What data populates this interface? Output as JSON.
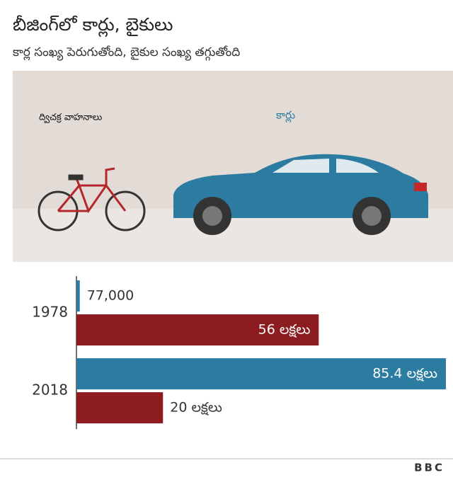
{
  "chart_data": {
    "type": "bar",
    "title": "బీజింగ్‌లో కార్లు, బైకులు",
    "subtitle": "కార్ల సంఖ్య పెరుగుతోంది, బైకుల సంఖ్య తగ్గుతోంది",
    "categories": [
      "1978",
      "2018"
    ],
    "series": [
      {
        "name": "కార్లు",
        "color": "#2b7ca0",
        "values": [
          77000,
          8540000
        ],
        "value_labels": [
          "77,000",
          "85.4  లక్షలు"
        ]
      },
      {
        "name": "ద్విచక్ర వాహనాలు",
        "color": "#8c1c1f",
        "values": [
          5600000,
          2000000
        ],
        "value_labels": [
          "56 లక్షలు",
          "20 లక్షలు"
        ]
      }
    ],
    "source": "BBC"
  }
}
